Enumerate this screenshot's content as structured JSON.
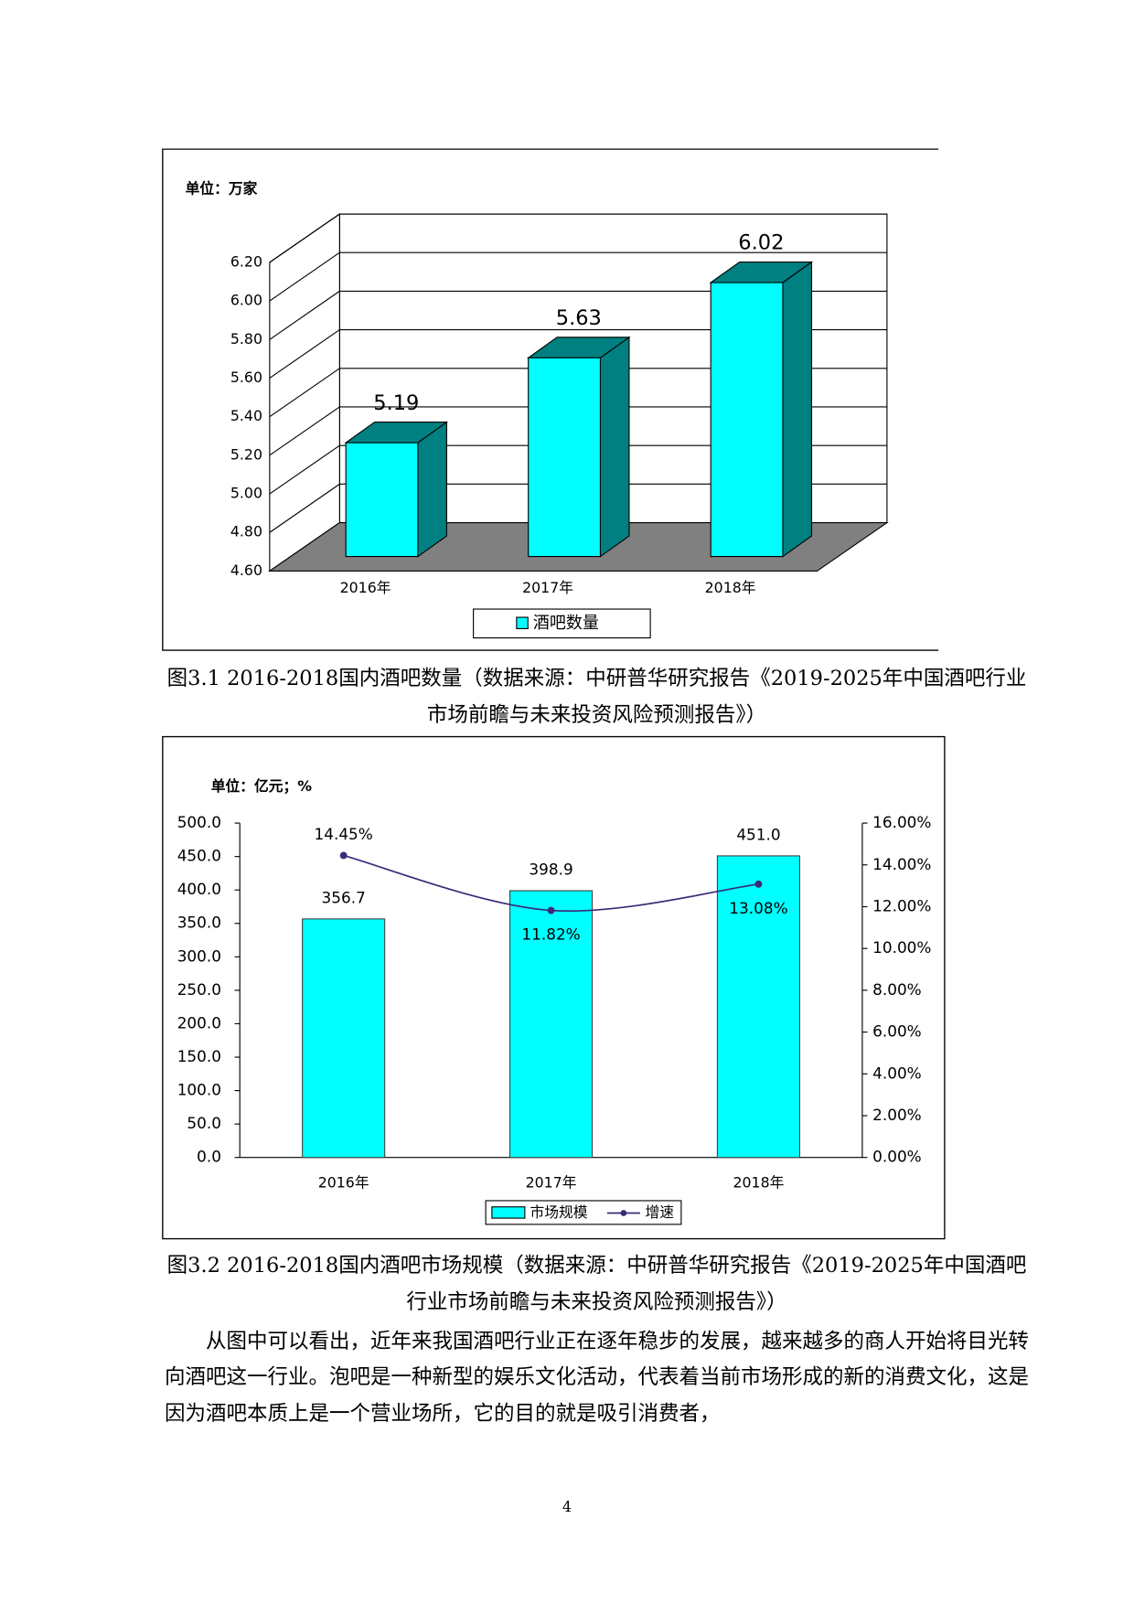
{
  "chart_data": [
    {
      "type": "bar3d",
      "unit_label": "单位：万家",
      "categories": [
        "2016年",
        "2017年",
        "2018年"
      ],
      "series": [
        {
          "name": "酒吧数量",
          "color": "#00ffff",
          "side_color": "#008080",
          "values": [
            5.19,
            5.63,
            6.02
          ]
        }
      ],
      "ylim": [
        4.6,
        6.2
      ],
      "yticks": [
        {
          "value": 4.6,
          "label": "4.60"
        },
        {
          "value": 4.8,
          "label": "4.80"
        },
        {
          "value": 5.0,
          "label": "5.00"
        },
        {
          "value": 5.2,
          "label": "5.20"
        },
        {
          "value": 5.4,
          "label": "5.40"
        },
        {
          "value": 5.6,
          "label": "5.60"
        },
        {
          "value": 5.8,
          "label": "5.80"
        },
        {
          "value": 6.0,
          "label": "6.00"
        },
        {
          "value": 6.2,
          "label": "6.20"
        }
      ],
      "grid": true,
      "floor_color": "#808080",
      "legend": "bottom"
    },
    {
      "type": "bar",
      "unit_label": "单位：亿元；%",
      "categories": [
        "2016年",
        "2017年",
        "2018年"
      ],
      "series": [
        {
          "name": "市场规模",
          "color": "#00ffff",
          "values": [
            356.7,
            398.9,
            451.0
          ],
          "value_labels": [
            "356.7",
            "398.9",
            "451.0"
          ]
        },
        {
          "name": "增速",
          "type": "line",
          "axis": "y2",
          "color": "#3b2a78",
          "values": [
            14.45,
            11.82,
            13.08
          ],
          "value_labels": [
            "14.45%",
            "11.82%",
            "13.08%"
          ]
        }
      ],
      "ylim": [
        0,
        500
      ],
      "yticks": [
        {
          "value": 0,
          "label": "0.0"
        },
        {
          "value": 50,
          "label": "50.0"
        },
        {
          "value": 100,
          "label": "100.0"
        },
        {
          "value": 150,
          "label": "150.0"
        },
        {
          "value": 200,
          "label": "200.0"
        },
        {
          "value": 250,
          "label": "250.0"
        },
        {
          "value": 300,
          "label": "300.0"
        },
        {
          "value": 350,
          "label": "350.0"
        },
        {
          "value": 400,
          "label": "400.0"
        },
        {
          "value": 450,
          "label": "450.0"
        },
        {
          "value": 500,
          "label": "500.0"
        }
      ],
      "y2lim": [
        0,
        16
      ],
      "y2ticks": [
        {
          "value": 0,
          "label": "0.00%"
        },
        {
          "value": 2,
          "label": "2.00%"
        },
        {
          "value": 4,
          "label": "4.00%"
        },
        {
          "value": 6,
          "label": "6.00%"
        },
        {
          "value": 8,
          "label": "8.00%"
        },
        {
          "value": 10,
          "label": "10.00%"
        },
        {
          "value": 12,
          "label": "12.00%"
        },
        {
          "value": 14,
          "label": "14.00%"
        },
        {
          "value": 16,
          "label": "16.00%"
        }
      ],
      "grid": false,
      "legend": "bottom"
    }
  ],
  "captions": [
    "图3.1 2016-2018国内酒吧数量（数据来源：中研普华研究报告《2019-2025年中国酒吧行业市场前瞻与未来投资风险预测报告》）",
    "图3.2 2016-2018国内酒吧市场规模（数据来源：中研普华研究报告《2019-2025年中国酒吧行业市场前瞻与未来投资风险预测报告》）"
  ],
  "paragraph": "从图中可以看出，近年来我国酒吧行业正在逐年稳步的发展，越来越多的商人开始将目光转向酒吧这一行业。泡吧是一种新型的娱乐文化活动，代表着当前市场形成的新的消费文化，这是因为酒吧本质上是一个营业场所，它的目的就是吸引消费者，",
  "page_number": "4"
}
